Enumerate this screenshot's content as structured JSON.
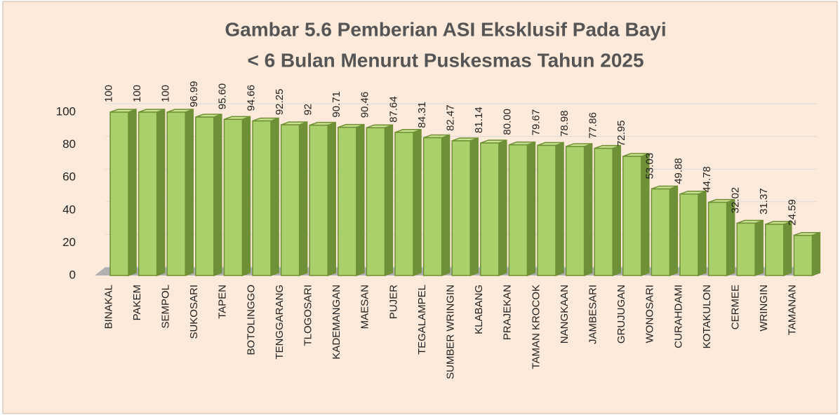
{
  "chart_data": {
    "type": "bar3d",
    "title": [
      "Gambar 5.6 Pemberian ASI Eksklusif Pada Bayi",
      "< 6 Bulan Menurut Puskesmas Tahun 2025"
    ],
    "categories": [
      "BINAKAL",
      "PAKEM",
      "SEMPOL",
      "SUKOSARI",
      "TAPEN",
      "BOTOLINGGO",
      "TENGGARANG",
      "TLOGOSARI",
      "KADEMANGAN",
      "MAESAN",
      "PUJER",
      "TEGALAMPEL",
      "SUMBER WRINGIN",
      "KLABANG",
      "PRAJEKAN",
      "TAMAN KROCOK",
      "NANGKAAN",
      "JAMBESARI",
      "GRUJUGAN",
      "WONOSARI",
      "CURAHDAMI",
      "KOTAKULON",
      "CERMEE",
      "WRINGIN",
      "TAMANAN"
    ],
    "values": [
      100,
      100,
      100,
      96.99,
      95.6,
      94.66,
      92.25,
      92,
      90.71,
      90.46,
      87.64,
      84.31,
      82.47,
      81.14,
      80,
      79.67,
      78.98,
      77.86,
      72.95,
      53.03,
      49.88,
      44.78,
      32.02,
      31.37,
      24.59
    ],
    "value_labels": [
      "100",
      "100",
      "100",
      "96.99",
      "95.60",
      "94.66",
      "92.25",
      "92",
      "90.71",
      "90.46",
      "87.64",
      "84.31",
      "82.47",
      "81.14",
      "80.00",
      "79.67",
      "78.98",
      "77.86",
      "72.95",
      "53.03",
      "49.88",
      "44.78",
      "32.02",
      "31.37",
      "24.59"
    ],
    "color": "#a9d06a",
    "ylim": [
      0,
      100
    ],
    "yticks": [
      0,
      20,
      40,
      60,
      80,
      100
    ],
    "grid": true
  }
}
